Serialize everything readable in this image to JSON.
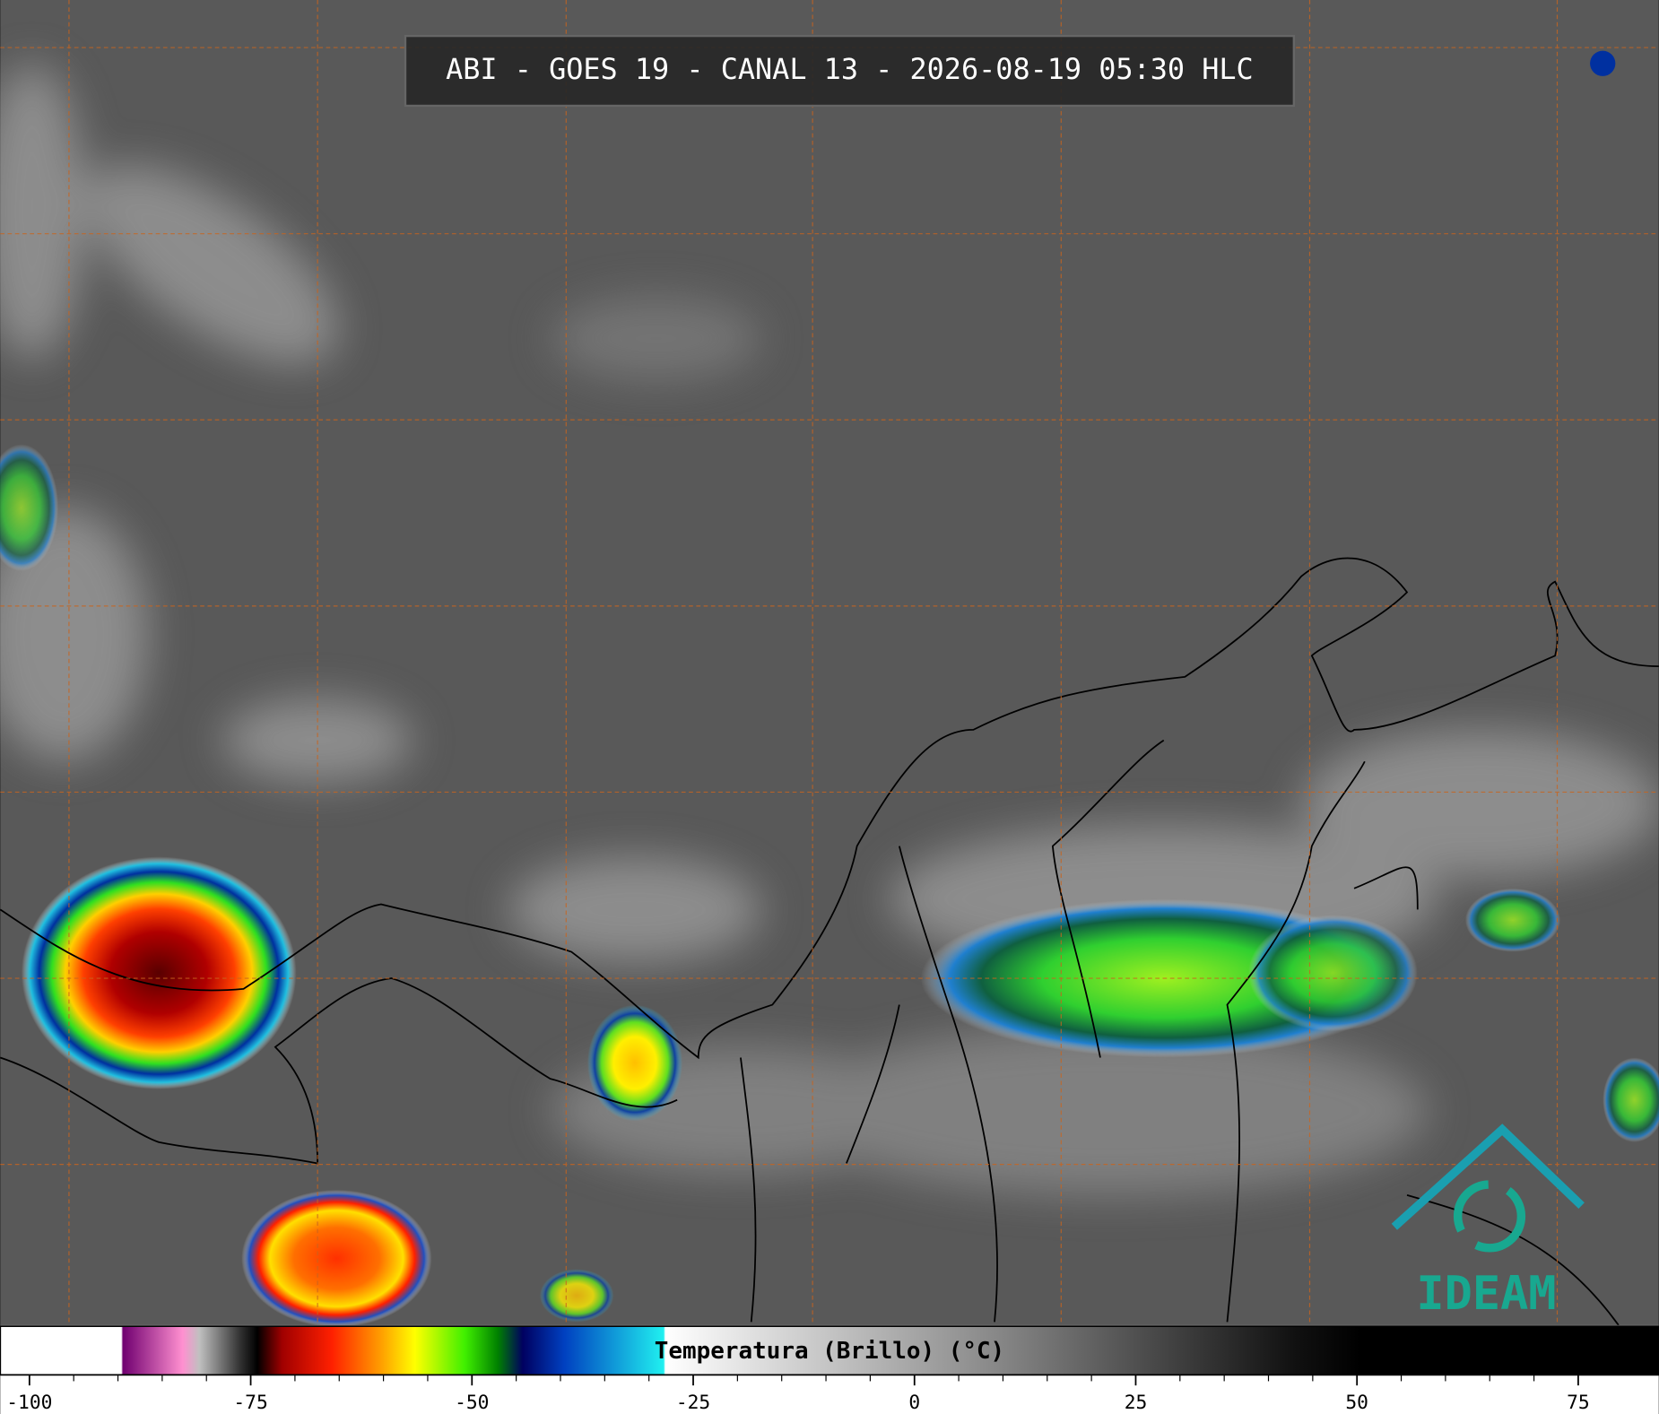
{
  "header": {
    "title": "ABI - GOES 19 - CANAL 13 - 2026-08-19 05:30 HLC"
  },
  "colorbar": {
    "label": "Temperatura (Brillo) (°C)",
    "xlim": [
      -103.3,
      84.1
    ],
    "ticks": [
      -100,
      -75,
      -50,
      -25,
      0,
      25,
      50,
      75
    ]
  },
  "logo": {
    "text": "IDEAM"
  }
}
